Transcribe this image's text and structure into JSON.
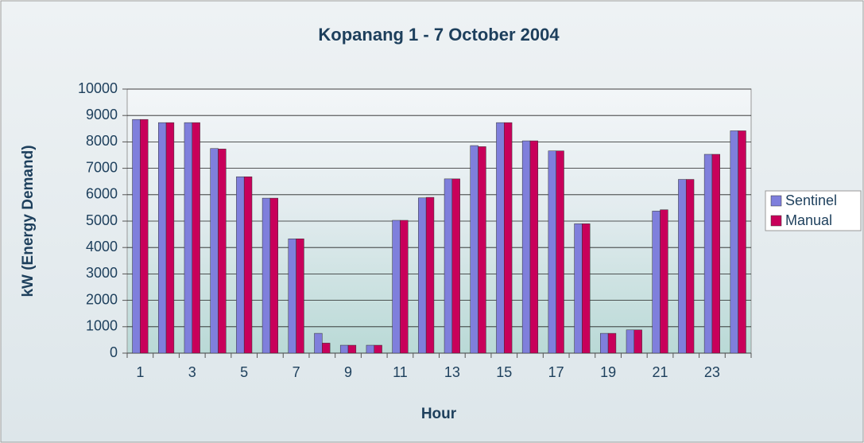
{
  "chart_data": {
    "type": "bar",
    "title": "Kopanang 1 - 7 October 2004",
    "x_label": "Hour",
    "y_label": "kW (Energy Demand)",
    "categories": [
      1,
      null,
      3,
      null,
      5,
      null,
      7,
      null,
      9,
      null,
      11,
      null,
      13,
      null,
      15,
      null,
      17,
      null,
      19,
      null,
      21,
      null,
      23,
      null
    ],
    "series": [
      {
        "name": "Sentinel",
        "color": "#7f7fdc",
        "values": [
          8850,
          8730,
          8730,
          7750,
          6680,
          5870,
          4330,
          750,
          300,
          300,
          5030,
          5880,
          6600,
          7860,
          8730,
          8040,
          7660,
          4900,
          750,
          880,
          5380,
          6580,
          7530,
          8420
        ]
      },
      {
        "name": "Manual",
        "color": "#c8005a",
        "values": [
          8850,
          8730,
          8730,
          7730,
          6680,
          5870,
          4330,
          380,
          300,
          300,
          5030,
          5900,
          6600,
          7820,
          8730,
          8040,
          7660,
          4900,
          750,
          880,
          5430,
          6580,
          7530,
          8420
        ]
      }
    ],
    "ylim": [
      0,
      10000
    ],
    "yticks": [
      0,
      1000,
      2000,
      3000,
      4000,
      5000,
      6000,
      7000,
      8000,
      9000,
      10000
    ],
    "grid": true,
    "legend": "right"
  }
}
